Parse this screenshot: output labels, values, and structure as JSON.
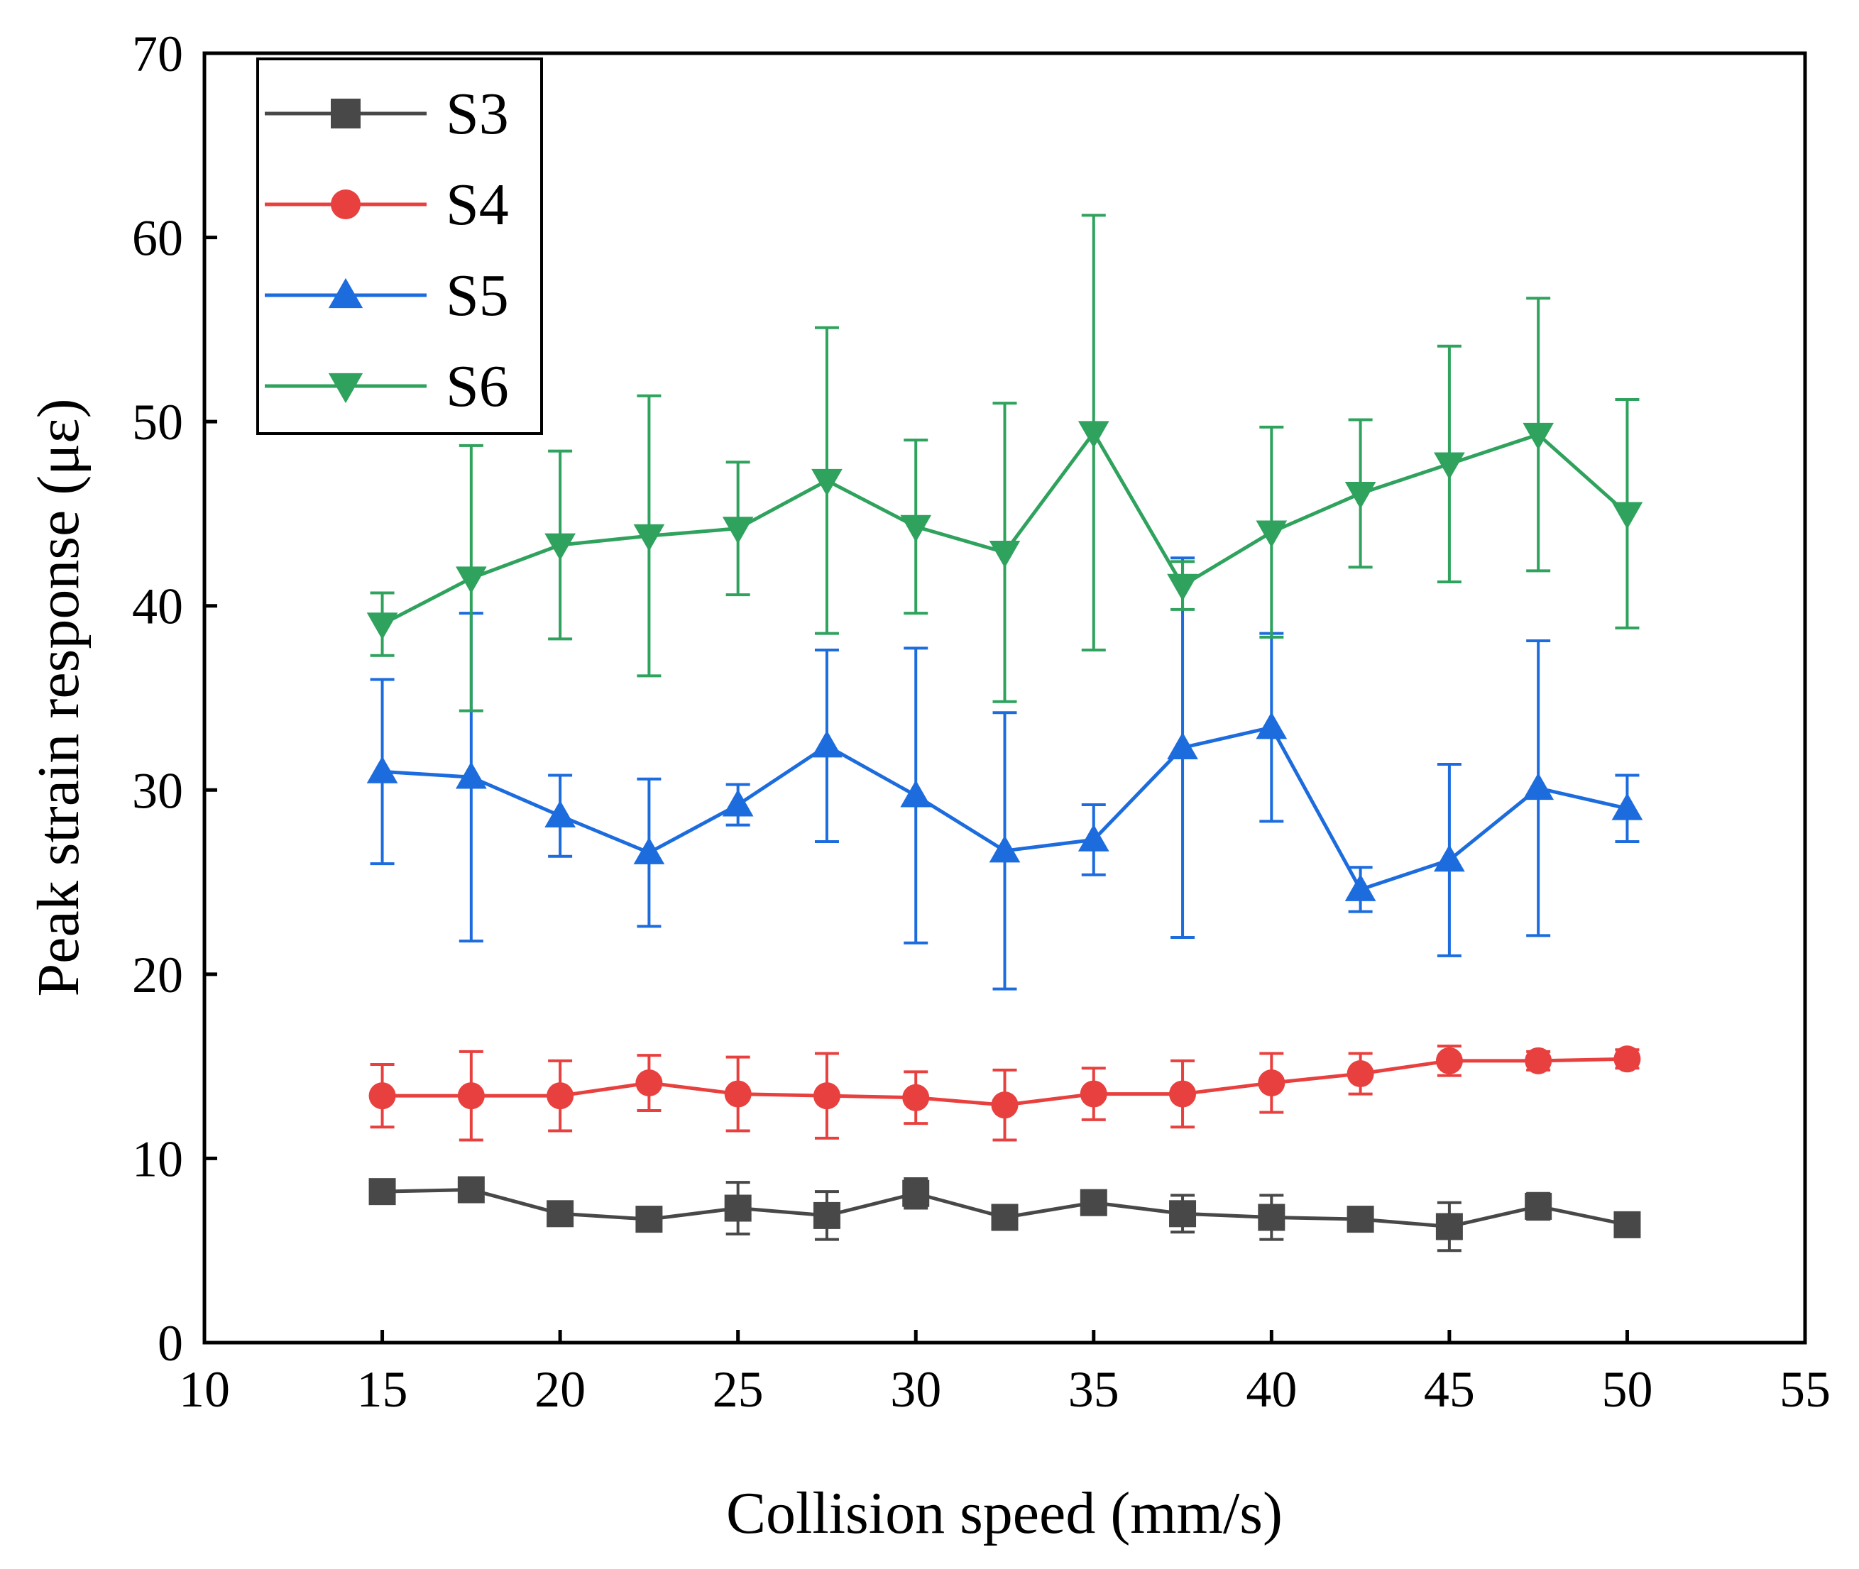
{
  "chart_data": {
    "type": "line",
    "title": "",
    "xlabel": "Collision speed (mm/s)",
    "ylabel": "Peak strain response (με)",
    "xlim": [
      10,
      55
    ],
    "ylim": [
      0,
      70
    ],
    "xticks": [
      10,
      15,
      20,
      25,
      30,
      35,
      40,
      45,
      50,
      55
    ],
    "yticks": [
      0,
      10,
      20,
      30,
      40,
      50,
      60,
      70
    ],
    "x": [
      15,
      17.5,
      20,
      22.5,
      25,
      27.5,
      30,
      32.5,
      35,
      37.5,
      40,
      42.5,
      45,
      47.5,
      50
    ],
    "legend_position": "top-left",
    "grid": false,
    "series": [
      {
        "name": "S3",
        "color": "#484848",
        "marker": "square",
        "values": [
          8.2,
          8.3,
          7.0,
          6.7,
          7.3,
          6.9,
          8.1,
          6.8,
          7.6,
          7.0,
          6.8,
          6.7,
          6.3,
          7.4,
          6.4
        ],
        "errors": [
          0.5,
          0.4,
          0.5,
          0.5,
          1.4,
          1.3,
          0.8,
          0.5,
          0.5,
          1.0,
          1.2,
          0.5,
          1.3,
          0.7,
          0.6
        ]
      },
      {
        "name": "S4",
        "color": "#e8403e",
        "marker": "circle",
        "values": [
          13.4,
          13.4,
          13.4,
          14.1,
          13.5,
          13.4,
          13.3,
          12.9,
          13.5,
          13.5,
          14.1,
          14.6,
          15.3,
          15.3,
          15.4
        ],
        "errors": [
          1.7,
          2.4,
          1.9,
          1.5,
          2.0,
          2.3,
          1.4,
          1.9,
          1.4,
          1.8,
          1.6,
          1.1,
          0.8,
          0.5,
          0.5
        ]
      },
      {
        "name": "S5",
        "color": "#1c6cde",
        "marker": "triangle-up",
        "values": [
          31.0,
          30.7,
          28.6,
          26.6,
          29.2,
          32.4,
          29.7,
          26.7,
          27.3,
          32.3,
          33.4,
          24.6,
          26.2,
          30.1,
          29.0
        ],
        "errors": [
          5.0,
          8.9,
          2.2,
          4.0,
          1.1,
          5.2,
          8.0,
          7.5,
          1.9,
          10.3,
          5.1,
          1.2,
          5.2,
          8.0,
          1.8
        ]
      },
      {
        "name": "S6",
        "color": "#2fa25d",
        "marker": "triangle-down",
        "values": [
          39.0,
          41.5,
          43.3,
          43.8,
          44.2,
          46.8,
          44.3,
          42.9,
          49.4,
          41.1,
          44.0,
          46.1,
          47.7,
          49.3,
          45.0
        ],
        "errors": [
          1.7,
          7.2,
          5.1,
          7.6,
          3.6,
          8.3,
          4.7,
          8.1,
          11.8,
          1.3,
          5.7,
          4.0,
          6.4,
          7.4,
          6.2
        ]
      }
    ]
  }
}
